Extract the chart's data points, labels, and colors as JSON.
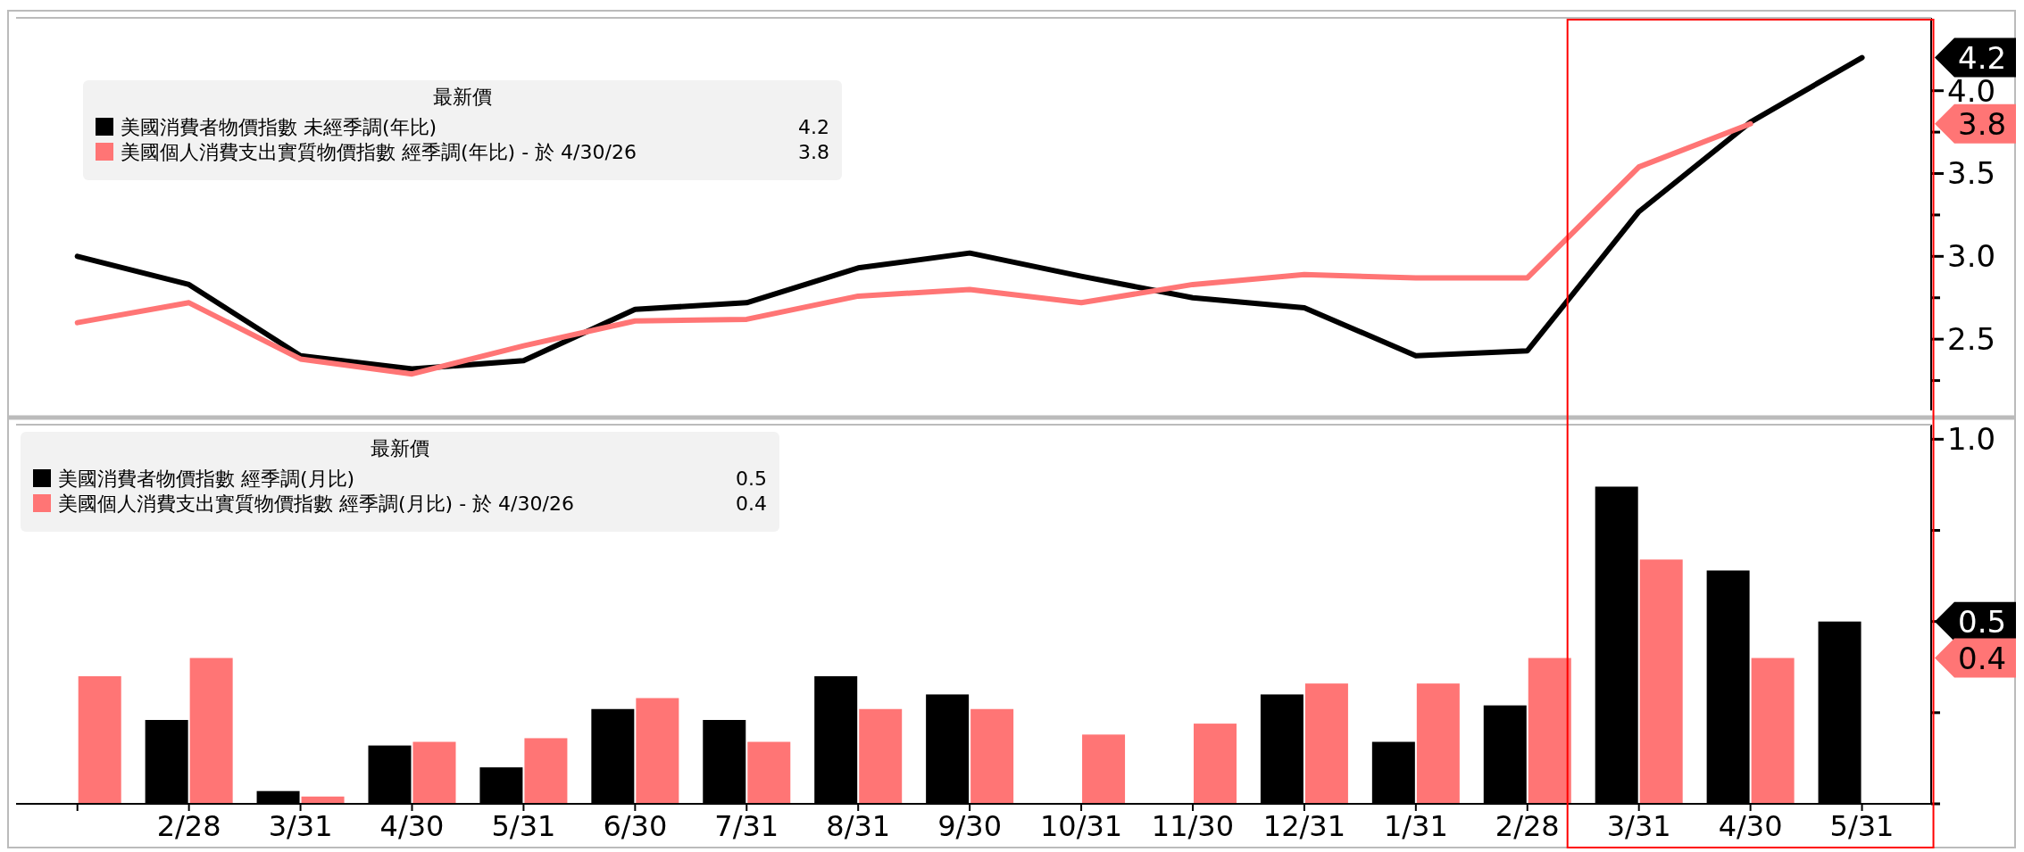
{
  "chart_data": [
    {
      "type": "line",
      "legend_title": "最新價",
      "legend": "top left",
      "tick_labels": "y",
      "grid": false,
      "categories": [
        null,
        null,
        null,
        null,
        null,
        null,
        null,
        null,
        null,
        null,
        null,
        null,
        null,
        null,
        null,
        null,
        null
      ],
      "series": [
        {
          "name": "美國消費者物價指數 未經季調(年比)",
          "color": "#000000",
          "values": [
            3.0,
            2.83,
            2.4,
            2.32,
            2.37,
            2.68,
            2.72,
            2.93,
            3.02,
            2.88,
            2.75,
            2.69,
            2.4,
            2.43,
            3.27,
            3.81,
            4.2
          ]
        },
        {
          "name": "美國個人消費支出實質物價指數 經季調(年比) -  於 4/30/26",
          "color": "#ff7575",
          "values": [
            2.6,
            2.72,
            2.38,
            2.29,
            2.46,
            2.61,
            2.62,
            2.76,
            2.8,
            2.72,
            2.83,
            2.89,
            2.87,
            2.87,
            3.54,
            3.8,
            null
          ]
        }
      ],
      "ylim": [
        2.07,
        4.44
      ],
      "yticks": [
        {
          "value": 2.25,
          "label": null
        },
        {
          "value": 2.5,
          "label": "2.5"
        },
        {
          "value": 2.75,
          "label": null
        },
        {
          "value": 3,
          "label": "3.0"
        },
        {
          "value": 3.25,
          "label": null
        },
        {
          "value": 3.5,
          "label": "3.5"
        },
        {
          "value": 3.75,
          "label": null
        },
        {
          "value": 4,
          "label": "4.0"
        }
      ],
      "annotations": [
        "4.2",
        "3.8"
      ]
    },
    {
      "type": "bar",
      "legend_title": "最新價",
      "legend": "top left",
      "grid": false,
      "categories": [
        null,
        "2/28",
        "3/31",
        "4/30",
        "5/31",
        "6/30",
        "7/31",
        "8/31",
        "9/30",
        "10/31",
        "11/30",
        "12/31",
        "1/31",
        "2/28",
        "3/31",
        "4/30",
        "5/31"
      ],
      "series": [
        {
          "name": "美國消費者物價指數 經季調(月比)",
          "color": "#000000",
          "values": [
            null,
            0.23,
            0.035,
            0.16,
            0.1,
            0.26,
            0.23,
            0.35,
            0.3,
            null,
            null,
            0.3,
            0.17,
            0.27,
            0.87,
            0.64,
            0.5
          ]
        },
        {
          "name": "美國個人消費支出實質物價指數 經季調(月比) -  於 4/30/26",
          "color": "#ff7575",
          "values": [
            0.35,
            0.4,
            0.02,
            0.17,
            0.18,
            0.29,
            0.17,
            0.26,
            0.26,
            0.19,
            0.22,
            0.33,
            0.33,
            0.4,
            0.67,
            0.4,
            null
          ]
        }
      ],
      "ylim": [
        0,
        1.04
      ],
      "yticks": [
        {
          "value": 0,
          "label": null
        },
        {
          "value": 0.25,
          "label": null
        },
        {
          "value": 0.5,
          "label": null
        },
        {
          "value": 0.75,
          "label": null
        },
        {
          "value": 1,
          "label": "1.0"
        }
      ],
      "annotations": [
        "0.5",
        "0.4"
      ]
    }
  ]
}
